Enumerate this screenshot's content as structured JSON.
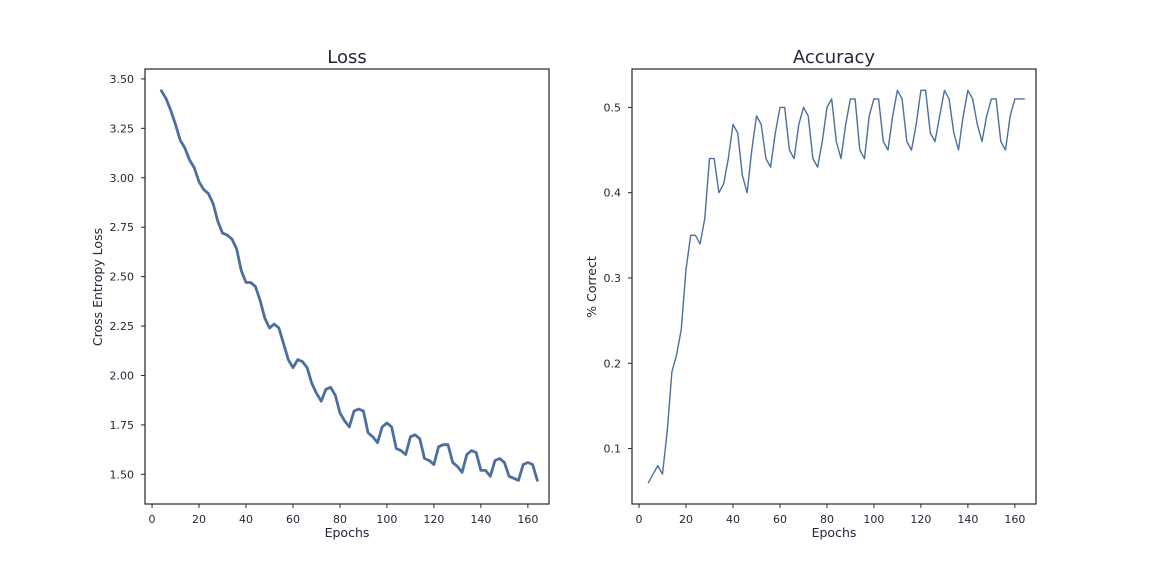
{
  "chart_data": [
    {
      "type": "line",
      "title": "Loss",
      "xlabel": "Epochs",
      "ylabel": "Cross Entropy Loss",
      "xlim": [
        -3,
        169
      ],
      "ylim": [
        1.35,
        3.55
      ],
      "xticks": [
        0,
        20,
        40,
        60,
        80,
        100,
        120,
        140,
        160
      ],
      "yticks": [
        1.5,
        1.75,
        2.0,
        2.25,
        2.5,
        2.75,
        3.0,
        3.25,
        3.5
      ],
      "ytick_labels": [
        "1.50",
        "1.75",
        "2.00",
        "2.25",
        "2.50",
        "2.75",
        "3.00",
        "3.25",
        "3.50"
      ],
      "grid": false,
      "color": "#4c6f9f",
      "series": [
        {
          "x": [
            4,
            6,
            8,
            10,
            12,
            14,
            16,
            18,
            20,
            22,
            24,
            26,
            28,
            30,
            32,
            34,
            36,
            38,
            40,
            42,
            44,
            46,
            48,
            50,
            52,
            54,
            56,
            58,
            60,
            62,
            64,
            66,
            68,
            70,
            72,
            74,
            76,
            78,
            80,
            82,
            84,
            86,
            88,
            90,
            92,
            94,
            96,
            98,
            100,
            102,
            104,
            106,
            108,
            110,
            112,
            114,
            116,
            118,
            120,
            122,
            124,
            126,
            128,
            130,
            132,
            134,
            136,
            138,
            140,
            142,
            144,
            146,
            148,
            150,
            152,
            154,
            156,
            158,
            160,
            162,
            164
          ],
          "values": [
            3.44,
            3.4,
            3.34,
            3.27,
            3.19,
            3.15,
            3.09,
            3.05,
            2.98,
            2.94,
            2.92,
            2.87,
            2.78,
            2.72,
            2.71,
            2.69,
            2.64,
            2.53,
            2.47,
            2.47,
            2.45,
            2.38,
            2.29,
            2.24,
            2.26,
            2.24,
            2.16,
            2.08,
            2.04,
            2.08,
            2.07,
            2.04,
            1.96,
            1.91,
            1.87,
            1.93,
            1.94,
            1.9,
            1.81,
            1.77,
            1.74,
            1.82,
            1.83,
            1.82,
            1.71,
            1.69,
            1.66,
            1.74,
            1.76,
            1.74,
            1.63,
            1.62,
            1.6,
            1.69,
            1.7,
            1.68,
            1.58,
            1.57,
            1.55,
            1.64,
            1.65,
            1.65,
            1.56,
            1.54,
            1.51,
            1.6,
            1.62,
            1.61,
            1.52,
            1.52,
            1.49,
            1.57,
            1.58,
            1.56,
            1.49,
            1.48,
            1.47,
            1.55,
            1.56,
            1.55,
            1.47
          ]
        }
      ]
    },
    {
      "type": "line",
      "title": "Accuracy",
      "xlabel": "Epochs",
      "ylabel": "% Correct",
      "xlim": [
        -3,
        169
      ],
      "ylim": [
        0.035,
        0.545
      ],
      "xticks": [
        0,
        20,
        40,
        60,
        80,
        100,
        120,
        140,
        160
      ],
      "yticks": [
        0.1,
        0.2,
        0.3,
        0.4,
        0.5
      ],
      "ytick_labels": [
        "0.1",
        "0.2",
        "0.3",
        "0.4",
        "0.5"
      ],
      "grid": false,
      "color": "#4c6f9f",
      "series": [
        {
          "x": [
            4,
            6,
            8,
            10,
            12,
            14,
            16,
            18,
            20,
            22,
            24,
            26,
            28,
            30,
            32,
            34,
            36,
            38,
            40,
            42,
            44,
            46,
            48,
            50,
            52,
            54,
            56,
            58,
            60,
            62,
            64,
            66,
            68,
            70,
            72,
            74,
            76,
            78,
            80,
            82,
            84,
            86,
            88,
            90,
            92,
            94,
            96,
            98,
            100,
            102,
            104,
            106,
            108,
            110,
            112,
            114,
            116,
            118,
            120,
            122,
            124,
            126,
            128,
            130,
            132,
            134,
            136,
            138,
            140,
            142,
            144,
            146,
            148,
            150,
            152,
            154,
            156,
            158,
            160,
            162,
            164
          ],
          "values": [
            0.06,
            0.07,
            0.08,
            0.07,
            0.12,
            0.19,
            0.21,
            0.24,
            0.31,
            0.35,
            0.35,
            0.34,
            0.37,
            0.44,
            0.44,
            0.4,
            0.41,
            0.44,
            0.48,
            0.47,
            0.42,
            0.4,
            0.45,
            0.49,
            0.48,
            0.44,
            0.43,
            0.47,
            0.5,
            0.5,
            0.45,
            0.44,
            0.48,
            0.5,
            0.49,
            0.44,
            0.43,
            0.46,
            0.5,
            0.51,
            0.46,
            0.44,
            0.48,
            0.51,
            0.51,
            0.45,
            0.44,
            0.49,
            0.51,
            0.51,
            0.46,
            0.45,
            0.49,
            0.52,
            0.51,
            0.46,
            0.45,
            0.48,
            0.52,
            0.52,
            0.47,
            0.46,
            0.49,
            0.52,
            0.51,
            0.47,
            0.45,
            0.49,
            0.52,
            0.51,
            0.48,
            0.46,
            0.49,
            0.51,
            0.51,
            0.46,
            0.45,
            0.49,
            0.51,
            0.51,
            0.51
          ]
        }
      ]
    }
  ]
}
